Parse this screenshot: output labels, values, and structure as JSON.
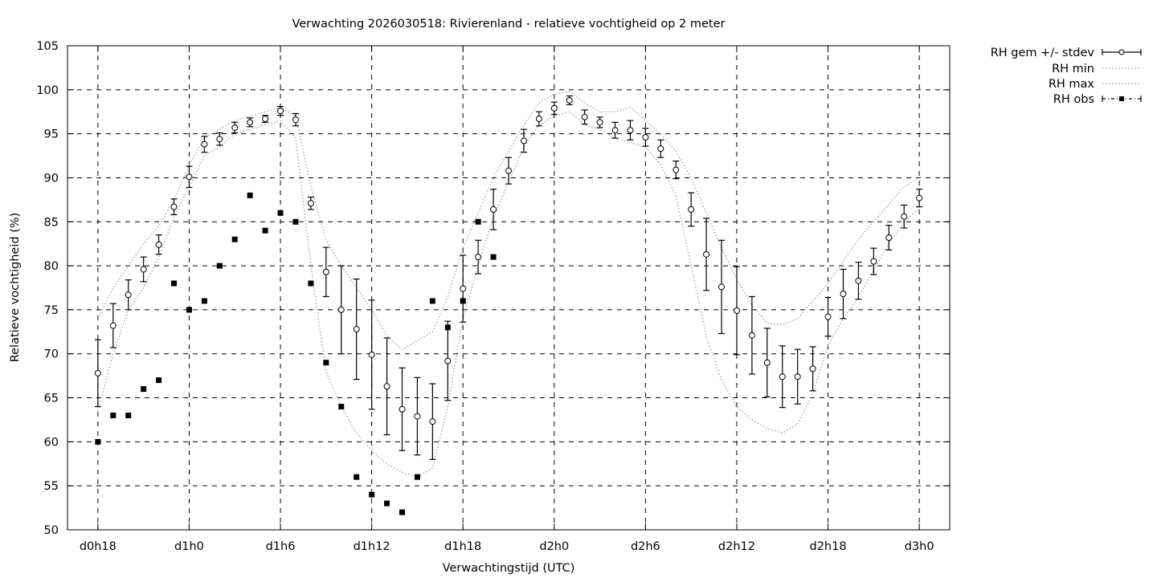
{
  "chart_data": {
    "type": "line",
    "title": "Verwachting 2026030518: Rivierenland - relatieve vochtigheid op 2 meter",
    "xlabel": "Verwachtingstijd (UTC)",
    "ylabel": "Relatieve vochtigheid (%)",
    "xlim": [
      -2,
      56
    ],
    "ylim": [
      50,
      105
    ],
    "x_ticks": [
      {
        "x": 0,
        "label": "d0h18"
      },
      {
        "x": 6,
        "label": "d1h0"
      },
      {
        "x": 12,
        "label": "d1h6"
      },
      {
        "x": 18,
        "label": "d1h12"
      },
      {
        "x": 24,
        "label": "d1h18"
      },
      {
        "x": 30,
        "label": "d2h0"
      },
      {
        "x": 36,
        "label": "d2h6"
      },
      {
        "x": 42,
        "label": "d2h12"
      },
      {
        "x": 48,
        "label": "d2h18"
      },
      {
        "x": 54,
        "label": "d3h0"
      }
    ],
    "y_ticks": [
      50,
      55,
      60,
      65,
      70,
      75,
      80,
      85,
      90,
      95,
      100,
      105
    ],
    "grid": true,
    "legend_position": "outside-top-right",
    "series": [
      {
        "name": "RH gem +/- stdev",
        "style": "errorbars-open-circles",
        "x": [
          0,
          1,
          2,
          3,
          4,
          5,
          6,
          7,
          8,
          9,
          10,
          11,
          12,
          13,
          14,
          15,
          16,
          17,
          18,
          19,
          20,
          21,
          22,
          23,
          24,
          25,
          26,
          27,
          28,
          29,
          30,
          31,
          32,
          33,
          34,
          35,
          36,
          37,
          38,
          39,
          40,
          41,
          42,
          43,
          44,
          45,
          46,
          47,
          48,
          49,
          50,
          51,
          52,
          53,
          54
        ],
        "mean": [
          67.8,
          73.2,
          76.7,
          79.6,
          82.4,
          86.7,
          90.1,
          93.8,
          94.4,
          95.7,
          96.3,
          96.7,
          97.6,
          96.6,
          87.1,
          79.3,
          75.0,
          72.8,
          69.9,
          66.3,
          63.7,
          62.9,
          62.3,
          69.2,
          77.4,
          81.0,
          86.4,
          90.8,
          94.2,
          96.7,
          97.9,
          98.8,
          96.9,
          96.3,
          95.4,
          95.4,
          94.6,
          93.3,
          90.9,
          86.4,
          81.3,
          77.6,
          74.9,
          72.1,
          69.0,
          67.4,
          67.4,
          68.3,
          74.2,
          76.8,
          78.3,
          80.5,
          83.2,
          85.6,
          87.7
        ],
        "stdev": [
          3.8,
          2.5,
          1.7,
          1.4,
          1.1,
          0.9,
          1.2,
          0.9,
          0.7,
          0.6,
          0.5,
          0.4,
          0.5,
          0.7,
          0.7,
          2.8,
          5.0,
          5.7,
          6.2,
          5.5,
          4.7,
          4.4,
          4.3,
          4.5,
          3.8,
          1.9,
          2.3,
          1.5,
          1.3,
          0.8,
          0.7,
          0.5,
          0.8,
          0.6,
          0.9,
          1.1,
          1.0,
          1.0,
          1.0,
          1.9,
          4.1,
          5.3,
          5.0,
          4.4,
          3.9,
          3.5,
          3.1,
          2.5,
          2.2,
          2.8,
          2.1,
          1.5,
          1.4,
          1.3,
          1.0
        ]
      },
      {
        "name": "RH min",
        "style": "dotted",
        "x": [
          0,
          1,
          2,
          3,
          4,
          5,
          6,
          7,
          8,
          9,
          10,
          11,
          12,
          13,
          14,
          15,
          16,
          17,
          18,
          19,
          20,
          21,
          22,
          23,
          24,
          25,
          26,
          27,
          28,
          29,
          30,
          31,
          32,
          33,
          34,
          35,
          36,
          37,
          38,
          39,
          40,
          41,
          42,
          43,
          44,
          45,
          46,
          47,
          48,
          49,
          50,
          51,
          52,
          53,
          54
        ],
        "values": [
          63.5,
          70.0,
          75.0,
          77.5,
          81.0,
          85.5,
          89.0,
          92.5,
          93.5,
          95.0,
          95.5,
          96.0,
          96.5,
          94.5,
          80.0,
          68.0,
          64.0,
          61.0,
          59.0,
          57.5,
          56.5,
          56.0,
          57.0,
          64.0,
          74.0,
          80.0,
          85.5,
          89.5,
          93.5,
          96.0,
          97.0,
          97.5,
          96.0,
          95.5,
          94.5,
          94.0,
          93.5,
          91.5,
          88.0,
          80.0,
          72.0,
          67.0,
          64.0,
          62.5,
          61.5,
          61.0,
          62.0,
          65.5,
          71.0,
          74.0,
          76.5,
          79.5,
          82.5,
          85.0,
          86.5
        ]
      },
      {
        "name": "RH max",
        "style": "dotted",
        "x": [
          0,
          1,
          2,
          3,
          4,
          5,
          6,
          7,
          8,
          9,
          10,
          11,
          12,
          13,
          14,
          15,
          16,
          17,
          18,
          19,
          20,
          21,
          22,
          23,
          24,
          25,
          26,
          27,
          28,
          29,
          30,
          31,
          32,
          33,
          34,
          35,
          36,
          37,
          38,
          39,
          40,
          41,
          42,
          43,
          44,
          45,
          46,
          47,
          48,
          49,
          50,
          51,
          52,
          53,
          54
        ],
        "values": [
          74.0,
          77.5,
          80.0,
          82.5,
          84.5,
          87.5,
          91.5,
          94.5,
          95.5,
          96.5,
          97.0,
          97.5,
          98.0,
          97.0,
          89.0,
          83.0,
          80.0,
          77.5,
          75.0,
          72.0,
          70.5,
          71.5,
          72.5,
          76.5,
          82.0,
          86.0,
          90.0,
          93.0,
          96.0,
          98.5,
          99.5,
          99.8,
          98.5,
          97.5,
          97.5,
          98.0,
          96.5,
          95.0,
          93.0,
          90.0,
          86.0,
          82.0,
          78.5,
          75.5,
          73.5,
          73.3,
          74.0,
          76.0,
          78.0,
          80.5,
          83.0,
          85.0,
          87.0,
          89.0,
          90.0
        ]
      },
      {
        "name": "RH obs",
        "style": "filled-squares",
        "x": [
          0,
          1,
          2,
          3,
          4,
          5,
          6,
          7,
          8,
          9,
          10,
          11,
          12,
          13,
          14,
          15,
          16,
          17,
          18,
          19,
          20,
          21,
          22,
          23,
          24,
          25,
          26
        ],
        "values": [
          60,
          63,
          63,
          66,
          67,
          78,
          75,
          76,
          80,
          83,
          88,
          84,
          86,
          85,
          78,
          69,
          64,
          56,
          54,
          53,
          52,
          56,
          76,
          73,
          76,
          85,
          81
        ]
      }
    ]
  }
}
